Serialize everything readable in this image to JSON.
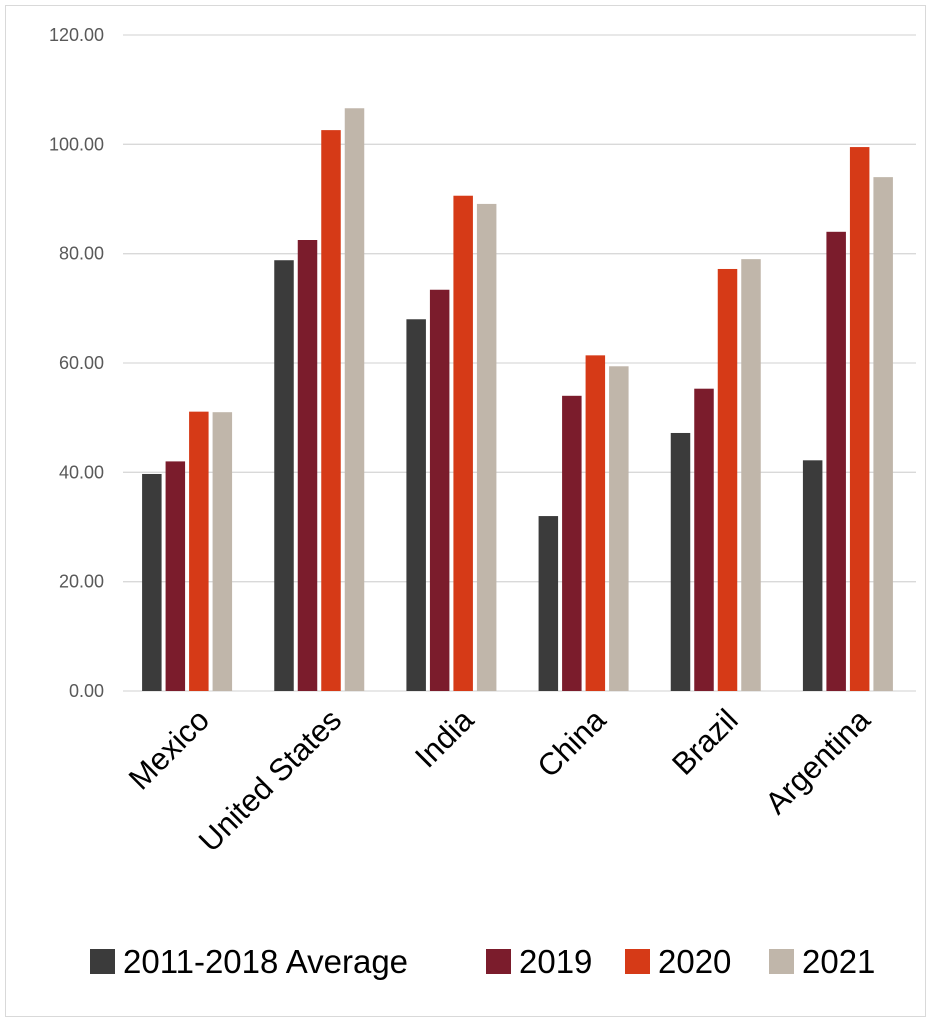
{
  "chart_data": {
    "type": "bar",
    "categories": [
      "Mexico",
      "United States",
      "India",
      "China",
      "Brazil",
      "Argentina"
    ],
    "series": [
      {
        "name": "2011-2018 Average",
        "color": "#3b3b3b",
        "values": [
          39.7,
          78.8,
          68.0,
          32.0,
          47.2,
          42.2
        ]
      },
      {
        "name": "2019",
        "color": "#7b1c2c",
        "values": [
          42.0,
          82.5,
          73.4,
          54.0,
          55.3,
          84.0
        ]
      },
      {
        "name": "2020",
        "color": "#d63a17",
        "values": [
          51.1,
          102.6,
          90.6,
          61.4,
          77.2,
          99.5
        ]
      },
      {
        "name": "2021",
        "color": "#c0b6aa",
        "values": [
          51.0,
          106.6,
          89.1,
          59.4,
          79.0,
          94.0
        ]
      }
    ],
    "title": "",
    "xlabel": "",
    "ylabel": "",
    "ylim": [
      0,
      120
    ],
    "yticks": [
      "0.00",
      "20.00",
      "40.00",
      "60.00",
      "80.00",
      "100.00",
      "120.00"
    ],
    "grid": true,
    "legend_position": "bottom",
    "gridline_color": "#d9d9d9"
  }
}
